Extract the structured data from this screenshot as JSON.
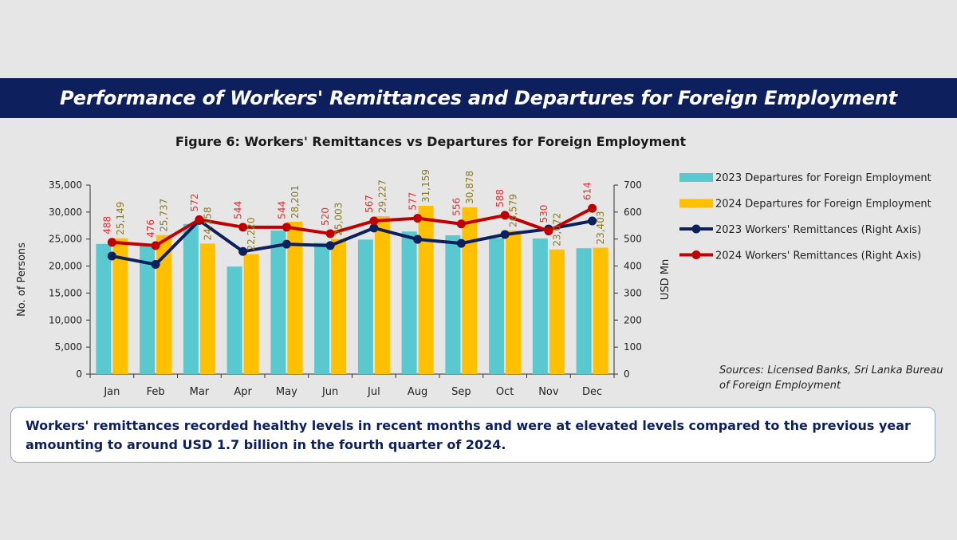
{
  "banner": {
    "title": "Performance of Workers' Remittances and Departures for Foreign Employment"
  },
  "chart_data": {
    "type": "bar",
    "title": "Figure 6: Workers' Remittances vs Departures for Foreign Employment",
    "ylabel": "No. of Persons",
    "y2label": "USD Mn",
    "ylim": [
      0,
      35000
    ],
    "y2lim": [
      0,
      700
    ],
    "yticks": [
      "0",
      "5,000",
      "10,000",
      "15,000",
      "20,000",
      "25,000",
      "30,000",
      "35,000"
    ],
    "y2ticks": [
      "0",
      "100",
      "200",
      "300",
      "400",
      "500",
      "600",
      "700"
    ],
    "categories": [
      "Jan",
      "Feb",
      "Mar",
      "Apr",
      "May",
      "Jun",
      "Jul",
      "Aug",
      "Sep",
      "Oct",
      "Nov",
      "Dec"
    ],
    "legend_position": "right",
    "series": [
      {
        "name": "2023 Departures for Foreign Employment",
        "kind": "bar",
        "axis": "left",
        "color": "#5ac8cf",
        "values": [
          24100,
          23900,
          27800,
          19900,
          26600,
          24300,
          24900,
          26400,
          25700,
          25200,
          25100,
          23300
        ]
      },
      {
        "name": "2024 Departures for Foreign Employment",
        "kind": "bar",
        "axis": "left",
        "color": "#ffc000",
        "values": [
          25149,
          25737,
          24158,
          22220,
          28201,
          25003,
          29227,
          31159,
          30878,
          26579,
          23072,
          23403
        ],
        "labels": [
          "25,149",
          "25,737",
          "24,158",
          "22,220",
          "28,201",
          "25,003",
          "29,227",
          "31,159",
          "30,878",
          "26,579",
          "23,072",
          "23,403"
        ],
        "label_color": "#8a7a22"
      },
      {
        "name": "2023 Workers' Remittances (Right Axis)",
        "kind": "line",
        "axis": "right",
        "color": "#0d1f5c",
        "values": [
          437,
          406,
          569,
          454,
          481,
          476,
          541,
          499,
          484,
          517,
          537,
          567
        ]
      },
      {
        "name": "2024 Workers' Remittances (Right Axis)",
        "kind": "line",
        "axis": "right",
        "color": "#c00000",
        "values": [
          488,
          476,
          572,
          544,
          544,
          520,
          567,
          577,
          556,
          588,
          530,
          614
        ],
        "labels": [
          "488",
          "476",
          "572",
          "544",
          "544",
          "520",
          "567",
          "577",
          "556",
          "588",
          "530",
          "614"
        ],
        "label_color": "#e03030"
      }
    ]
  },
  "sources": "Sources: Licensed Banks, Sri Lanka Bureau of Foreign Employment",
  "summary": "Workers' remittances recorded healthy levels in recent months and were at elevated levels compared to the previous year amounting to around USD 1.7 billion in the fourth quarter of 2024."
}
